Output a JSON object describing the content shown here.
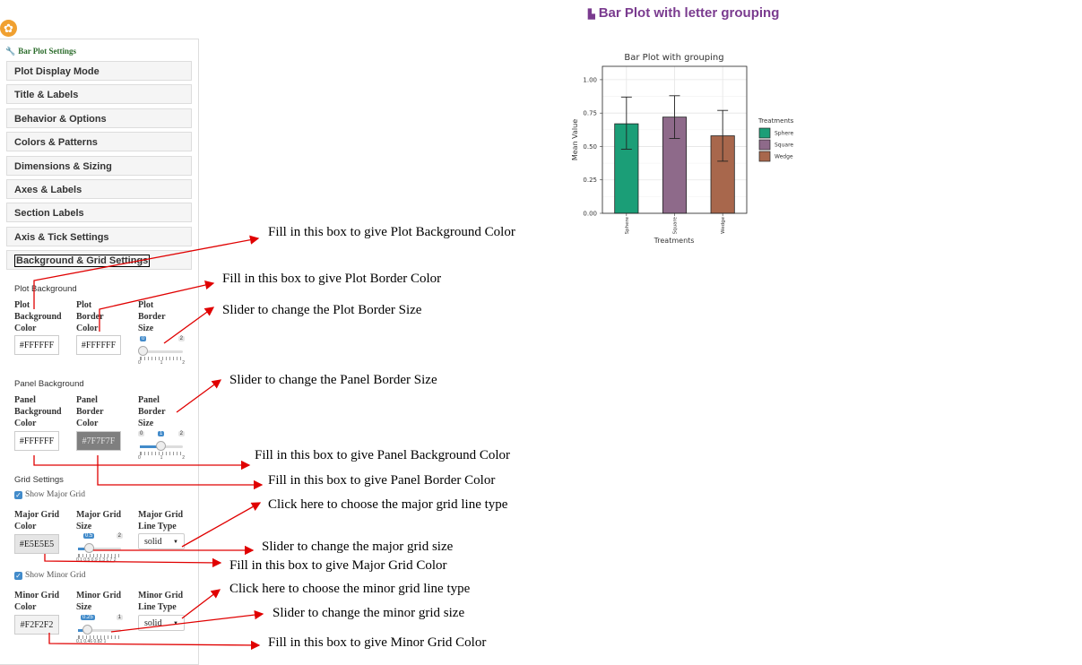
{
  "page_title": "Bar Plot with letter grouping",
  "sidebar": {
    "header": "Bar Plot Settings",
    "accordion": [
      "Plot Display Mode",
      "Title & Labels",
      "Behavior & Options",
      "Colors & Patterns",
      "Dimensions & Sizing",
      "Axes & Labels",
      "Section Labels",
      "Axis & Tick Settings",
      "Background & Grid Settings"
    ],
    "plot_background": {
      "section_label": "Plot Background",
      "bg_color_label": "Plot Background Color",
      "bg_color_value": "#FFFFFF",
      "border_color_label": "Plot Border Color",
      "border_color_value": "#FFFFFF",
      "border_size_label": "Plot Border Size",
      "border_size": {
        "value": "0",
        "max": "2",
        "ticks": [
          "0",
          "1",
          "2"
        ]
      }
    },
    "panel_background": {
      "section_label": "Panel Background",
      "bg_color_label": "Panel Background Color",
      "bg_color_value": "#FFFFFF",
      "border_color_label": "Panel Border Color",
      "border_color_value": "#7F7F7F",
      "border_size_label": "Panel Border Size",
      "border_size": {
        "min": "0",
        "value": "1",
        "max": "2",
        "ticks": [
          "0",
          "1",
          "2"
        ]
      }
    },
    "grid": {
      "section_label": "Grid Settings",
      "show_major": "Show Major Grid",
      "major_color_label": "Major Grid Color",
      "major_color_value": "#E5E5E5",
      "major_size_label": "Major Grid Size",
      "major_size": {
        "value": "0.5",
        "max": "2",
        "ticks": "0.1 0.5 0.9 1.3 1.7 2"
      },
      "major_type_label": "Major Grid Line Type",
      "major_type_value": "solid",
      "show_minor": "Show Minor Grid",
      "minor_color_label": "Minor Grid Color",
      "minor_color_value": "#F2F2F2",
      "minor_size_label": "Minor Grid Size",
      "minor_size": {
        "value": "0.25",
        "max": "1",
        "ticks": "0.1 0.46 0.82 1"
      },
      "minor_type_label": "Minor Grid Line Type",
      "minor_type_value": "solid"
    }
  },
  "annotations": {
    "plot_bg": "Fill in this box to give Plot Background Color",
    "plot_border": "Fill in this box to give Plot Border Color",
    "plot_border_size": "Slider to change the Plot Border Size",
    "panel_border_size": "Slider to change the Panel Border Size",
    "panel_bg": "Fill in this box to give Panel Background Color",
    "panel_border": "Fill in this box to give Panel Border Color",
    "major_type": "Click here to choose the major grid line type",
    "major_size": "Slider to change the major grid size",
    "major_color": "Fill in this box to give Major Grid Color",
    "minor_type": "Click here to choose the minor grid line type",
    "minor_size": "Slider to change the minor grid size",
    "minor_color": "Fill in this box to give Minor Grid Color"
  },
  "colors": {
    "accent": "#7a3b8f",
    "arrow": "#e00000",
    "slider": "#428bca"
  },
  "chart_data": {
    "type": "bar",
    "title": "Bar Plot with grouping",
    "xlabel": "Treatments",
    "ylabel": "Mean Value",
    "categories": [
      "Sphere",
      "Square",
      "Wedge"
    ],
    "values": [
      0.67,
      0.72,
      0.58
    ],
    "error_low": [
      0.48,
      0.56,
      0.39
    ],
    "error_high": [
      0.87,
      0.88,
      0.77
    ],
    "colors": [
      "#1b9e77",
      "#8e6a8a",
      "#a8674c"
    ],
    "ylim": [
      0,
      1.1
    ],
    "yticks": [
      "0.00",
      "0.25",
      "0.50",
      "0.75",
      "1.00"
    ],
    "legend_title": "Treatments",
    "legend_position": "right",
    "grid": true
  }
}
